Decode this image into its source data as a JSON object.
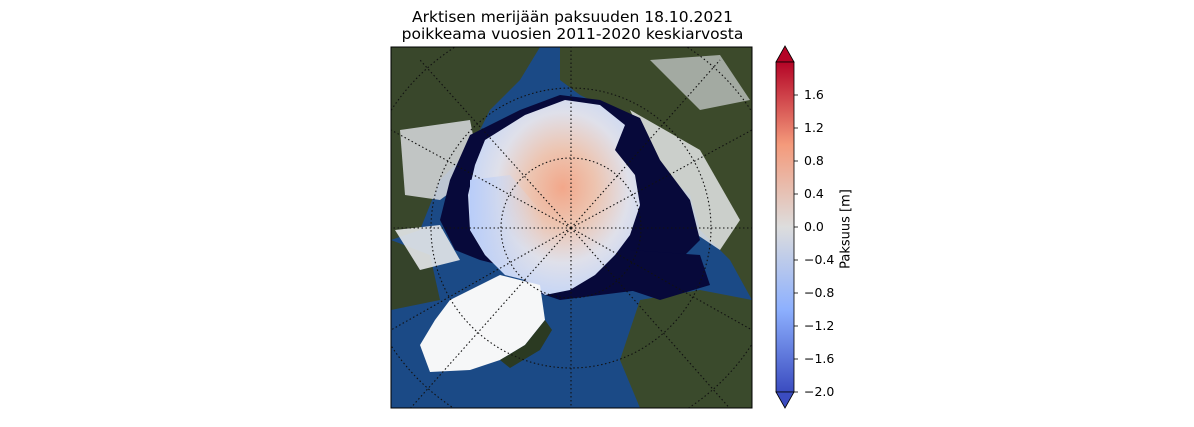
{
  "figure": {
    "title_line1": "Arktisen merijään paksuuden 18.10.2021",
    "title_line2": "poikkeama vuosien 2011-2020 keskiarvosta"
  },
  "map": {
    "projection": "north-polar-stereographic",
    "background": "satellite-earth-imagery",
    "gridlines": "dotted",
    "colors": {
      "ocean": "#1b4a86",
      "land": "#3c4a2b",
      "snow": "#e8ebee",
      "open_water_mask": "#07093a",
      "greenland_ice": "#f6f7f8"
    }
  },
  "colorbar": {
    "label": "Paksuus [m]",
    "min": -2.0,
    "max": 2.0,
    "extend": "both",
    "cmap": "coolwarm",
    "ticks": [
      "1.6",
      "1.2",
      "0.8",
      "0.4",
      "0.0",
      "−0.4",
      "−0.8",
      "−1.2",
      "−1.6",
      "−2.0"
    ],
    "tick_values": [
      1.6,
      1.2,
      0.8,
      0.4,
      0.0,
      -0.4,
      -0.8,
      -1.2,
      -1.6,
      -2.0
    ],
    "colors": {
      "low": "#3b4cc0",
      "mid": "#dddddd",
      "high": "#b40426"
    }
  }
}
